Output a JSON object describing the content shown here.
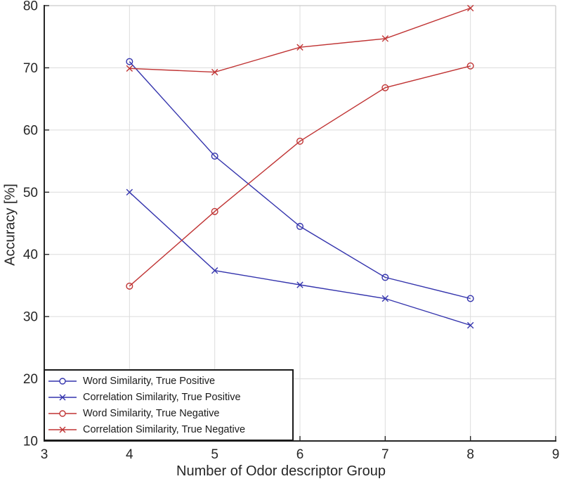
{
  "chart_data": {
    "type": "line",
    "x": [
      4,
      5,
      6,
      7,
      8
    ],
    "series": [
      {
        "name": "Word Similarity, True Positive",
        "color": "#3434ad",
        "marker": "circle",
        "values": [
          71.0,
          55.8,
          44.5,
          36.3,
          32.9
        ]
      },
      {
        "name": "Correlation Similarity, True Positive",
        "color": "#3434ad",
        "marker": "x",
        "values": [
          50.0,
          37.4,
          35.1,
          32.9,
          28.6
        ]
      },
      {
        "name": "Word Similarity, True Negative",
        "color": "#c03434",
        "marker": "circle",
        "values": [
          34.9,
          46.9,
          58.2,
          66.8,
          70.3
        ]
      },
      {
        "name": "Correlation Similarity, True Negative",
        "color": "#c03434",
        "marker": "x",
        "values": [
          69.9,
          69.3,
          73.3,
          74.7,
          79.6
        ]
      }
    ],
    "xlabel": "Number of Odor descriptor Group",
    "ylabel": "Accuracy [%]",
    "xlim": [
      3,
      9
    ],
    "ylim": [
      10,
      80
    ],
    "x_ticks": [
      3,
      4,
      5,
      6,
      7,
      8,
      9
    ],
    "y_ticks": [
      10,
      20,
      30,
      40,
      50,
      60,
      70,
      80
    ],
    "grid": true,
    "legend_position": "bottom-left"
  },
  "style": {
    "grid_color": "#dcdcdc",
    "box_light_color": "#c9c9c9",
    "spine_color": "#262626",
    "background": "#ffffff"
  }
}
